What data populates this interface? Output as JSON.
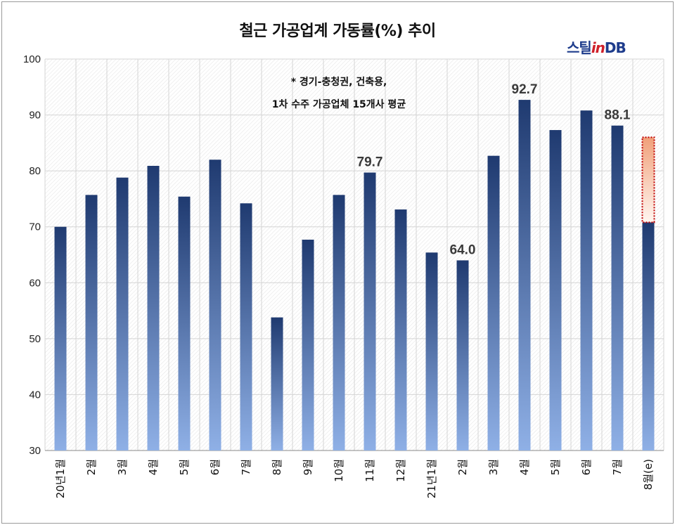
{
  "title": "철근 가공업계 가동률(%) 추이",
  "logo": {
    "prefix": "스틸",
    "in": "in",
    "suffix": "DB"
  },
  "notes": [
    "* 경기-충청권, 건축용,",
    "1차 수주 가공업체 15개사 평균"
  ],
  "colors": {
    "bar_top": "#1f3a70",
    "bar_bottom": "#8fb0e6",
    "estimate_top": "#f0a07a",
    "estimate_bottom": "#fff6f0",
    "estimate_border": "#c00000",
    "grid": "#d4d4d4"
  },
  "chart_data": {
    "type": "bar",
    "title": "철근 가공업계 가동률(%) 추이",
    "categories": [
      "20년1월",
      "2월",
      "3월",
      "4월",
      "5월",
      "6월",
      "7월",
      "8월",
      "9월",
      "10월",
      "11월",
      "12월",
      "21년1월",
      "2월",
      "3월",
      "4월",
      "5월",
      "6월",
      "7월",
      "8월(e)"
    ],
    "values": [
      70.0,
      75.7,
      78.8,
      80.9,
      75.4,
      82.0,
      74.2,
      53.8,
      67.7,
      75.7,
      79.7,
      73.1,
      65.4,
      64.0,
      82.7,
      92.7,
      87.3,
      90.8,
      88.1,
      70.8
    ],
    "estimate": {
      "category": "8월(e)",
      "low": 70.8,
      "high": 86.0
    },
    "data_labels": [
      {
        "index": 10,
        "text": "79.7"
      },
      {
        "index": 13,
        "text": "64.0"
      },
      {
        "index": 15,
        "text": "92.7"
      },
      {
        "index": 18,
        "text": "88.1"
      }
    ],
    "ylim": [
      30,
      100
    ],
    "yticks": [
      "30",
      "40",
      "50",
      "60",
      "70",
      "80",
      "90",
      "100"
    ],
    "grid": true,
    "legend": "none"
  }
}
